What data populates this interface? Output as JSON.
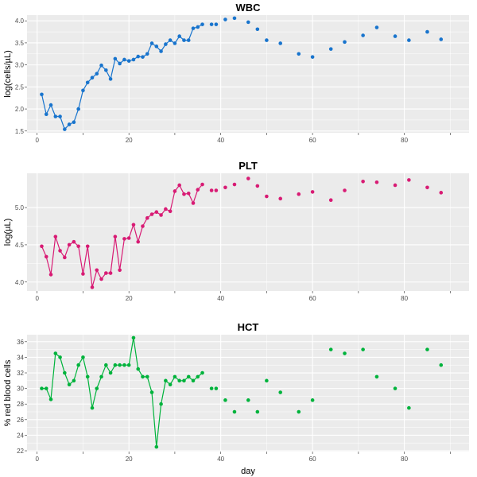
{
  "chart_data": [
    {
      "type": "line",
      "title": "WBC",
      "xlabel": "",
      "ylabel": "log(cells/µL)",
      "color": "#1874CD",
      "xlim": [
        -2.2,
        94.1
      ],
      "ylim": [
        1.46,
        4.13
      ],
      "xticks": [
        0,
        20,
        40,
        60,
        80
      ],
      "yticks": [
        "1.5",
        "2.0",
        "2.5",
        "3.0",
        "3.5",
        "4.0"
      ],
      "grid": true,
      "connected_through_day": 36,
      "x": [
        1,
        2,
        3,
        4,
        5,
        6,
        7,
        8,
        9,
        10,
        11,
        12,
        13,
        14,
        15,
        16,
        17,
        18,
        19,
        20,
        21,
        22,
        23,
        24,
        25,
        26,
        27,
        28,
        29,
        30,
        31,
        32,
        33,
        34,
        35,
        36,
        38,
        39,
        41,
        43,
        46,
        48,
        50,
        53,
        57,
        60,
        64,
        67,
        71,
        74,
        78,
        81,
        85,
        88
      ],
      "y": [
        2.33,
        1.88,
        2.09,
        1.83,
        1.83,
        1.54,
        1.65,
        1.7,
        2.0,
        2.42,
        2.6,
        2.71,
        2.8,
        2.99,
        2.88,
        2.68,
        3.14,
        3.03,
        3.12,
        3.09,
        3.12,
        3.19,
        3.18,
        3.25,
        3.49,
        3.42,
        3.31,
        3.47,
        3.56,
        3.49,
        3.65,
        3.56,
        3.56,
        3.83,
        3.86,
        3.92,
        3.92,
        3.92,
        4.03,
        4.06,
        3.97,
        3.81,
        3.56,
        3.49,
        3.25,
        3.18,
        3.36,
        3.52,
        3.67,
        3.85,
        3.65,
        3.56,
        3.75,
        3.58
      ]
    },
    {
      "type": "line",
      "title": "PLT",
      "xlabel": "",
      "ylabel": "log(µL)",
      "color": "#D81B74",
      "xlim": [
        -2.2,
        94.1
      ],
      "ylim": [
        3.88,
        5.46
      ],
      "xticks": [
        0,
        20,
        40,
        60,
        80
      ],
      "yticks": [
        "4.0",
        "4.5",
        "5.0"
      ],
      "grid": true,
      "connected_through_day": 36,
      "x": [
        1,
        2,
        3,
        4,
        5,
        6,
        7,
        8,
        9,
        10,
        11,
        12,
        13,
        14,
        15,
        16,
        17,
        18,
        19,
        20,
        21,
        22,
        23,
        24,
        25,
        26,
        27,
        28,
        29,
        30,
        31,
        32,
        33,
        34,
        35,
        36,
        38,
        39,
        41,
        43,
        46,
        48,
        50,
        53,
        57,
        60,
        64,
        67,
        71,
        74,
        78,
        81,
        85,
        88
      ],
      "y": [
        4.48,
        4.34,
        4.1,
        4.61,
        4.42,
        4.33,
        4.5,
        4.54,
        4.48,
        4.11,
        4.48,
        3.93,
        4.16,
        4.04,
        4.12,
        4.12,
        4.61,
        4.16,
        4.58,
        4.59,
        4.77,
        4.54,
        4.75,
        4.86,
        4.91,
        4.94,
        4.9,
        4.98,
        4.95,
        5.22,
        5.3,
        5.18,
        5.19,
        5.06,
        5.24,
        5.31,
        5.23,
        5.23,
        5.27,
        5.31,
        5.39,
        5.29,
        5.15,
        5.12,
        5.18,
        5.21,
        5.1,
        5.23,
        5.35,
        5.34,
        5.3,
        5.37,
        5.27,
        5.2
      ]
    },
    {
      "type": "line",
      "title": "HCT",
      "xlabel": "day",
      "ylabel": "% red blood cells",
      "color": "#00B33C",
      "xlim": [
        -2.2,
        94.1
      ],
      "ylim": [
        21.9,
        36.9
      ],
      "xticks": [
        0,
        20,
        40,
        60,
        80
      ],
      "yticks": [
        "22",
        "24",
        "26",
        "28",
        "30",
        "32",
        "34",
        "36"
      ],
      "grid": true,
      "connected_through_day": 36,
      "x": [
        1,
        2,
        3,
        4,
        5,
        6,
        7,
        8,
        9,
        10,
        11,
        12,
        13,
        14,
        15,
        16,
        17,
        18,
        19,
        20,
        21,
        22,
        23,
        24,
        25,
        26,
        27,
        28,
        29,
        30,
        31,
        32,
        33,
        34,
        35,
        36,
        38,
        39,
        41,
        43,
        46,
        48,
        50,
        53,
        57,
        60,
        64,
        67,
        71,
        74,
        78,
        81,
        85,
        88
      ],
      "y": [
        30,
        30,
        28.6,
        34.5,
        34,
        32,
        30.5,
        31,
        33,
        34,
        31.5,
        27.5,
        30,
        31.5,
        33,
        32,
        33,
        33,
        33,
        33,
        36.5,
        32.5,
        31.5,
        31.5,
        29.5,
        22.5,
        28,
        31,
        30.5,
        31.5,
        31,
        31,
        31.5,
        31,
        31.5,
        32,
        30,
        30,
        28.5,
        27,
        28.5,
        27,
        31,
        29.5,
        27,
        28.5,
        35,
        34.5,
        35,
        31.5,
        30,
        27.5,
        35,
        33
      ]
    }
  ]
}
